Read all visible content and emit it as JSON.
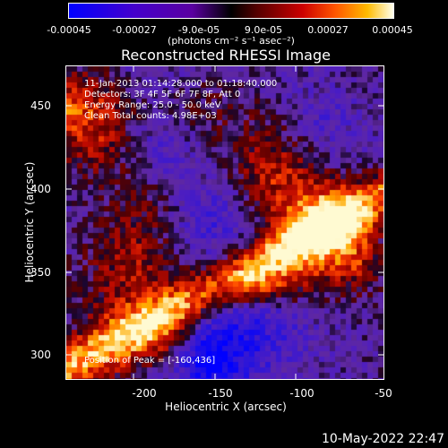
{
  "colorbar": {
    "ticks": [
      "-0.00045",
      "-0.00027",
      "-9.0e-05",
      "9.0e-05",
      "0.00027",
      "0.00045"
    ],
    "units": "(photons cm⁻² s⁻¹ asec⁻²)",
    "colors": [
      "#0000ff",
      "#3300dd",
      "#6600bb",
      "#220066",
      "#550000",
      "#bb0000",
      "#ff4400",
      "#ffaa00",
      "#ffffcc"
    ]
  },
  "title": "Reconstructed RHESSI Image",
  "annotations": {
    "time_range": "11-Jan-2013 01:14:28.000 to 01:18:40.000",
    "detectors": "Detectors: 3F 4F 5F 6F 7F 8F, Att 0",
    "energy": "Energy Range: 25.0 - 50.0 keV",
    "algorithm": "Clean    Total counts: 4.98E+03",
    "peak": "Position of Peak = [-160,436]"
  },
  "axes": {
    "xlabel": "Heliocentric X (arcsec)",
    "ylabel": "Heliocentric Y (arcsec)",
    "xticks": [
      "-200",
      "-150",
      "-100",
      "-50"
    ],
    "yticks": [
      "450",
      "400",
      "350",
      "300"
    ],
    "xrange": [
      -245,
      -50
    ],
    "yrange": [
      287,
      472
    ]
  },
  "datestamp": "10-May-2022 22:47"
}
